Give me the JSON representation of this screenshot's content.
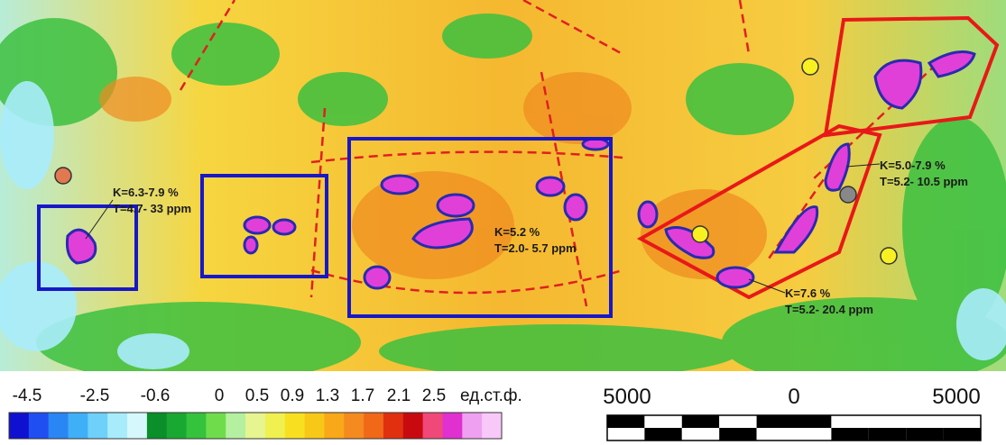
{
  "annotations": [
    {
      "lines": [
        "K=6.3-7.9 %",
        "T=4.7- 33 ppm"
      ]
    },
    {
      "lines": [
        "K=5.2 %",
        "T=2.0- 5.7 ppm"
      ]
    },
    {
      "lines": [
        "K=5.0-7.9 %",
        "T=5.2- 10.5 ppm"
      ]
    },
    {
      "lines": [
        "K=7.6 %",
        "T=5.2- 20.4 ppm"
      ]
    }
  ],
  "legend": {
    "ticks": [
      "-4.5",
      "-2.5",
      "-0.6",
      "0",
      "0.5",
      "0.9",
      "1.3",
      "1.7",
      "2.1",
      "2.5"
    ],
    "unit": "ед.ст.ф.",
    "colors": [
      "#1010d0",
      "#1f4ff0",
      "#2a86f5",
      "#3fb0f7",
      "#6fd0fa",
      "#a8ecfc",
      "#d6f8fc",
      "#0a8f2a",
      "#19a832",
      "#35c23c",
      "#6fdc4c",
      "#b5f0a0",
      "#e6f590",
      "#f0f050",
      "#f8e020",
      "#f8c818",
      "#f8a818",
      "#f58a20",
      "#f06818",
      "#e03010",
      "#c80a10",
      "#f04878",
      "#e030d0",
      "#f0a0f0",
      "#f8c8f8"
    ]
  },
  "scale_bar": {
    "labels": [
      "5000",
      "0",
      "5000"
    ]
  }
}
